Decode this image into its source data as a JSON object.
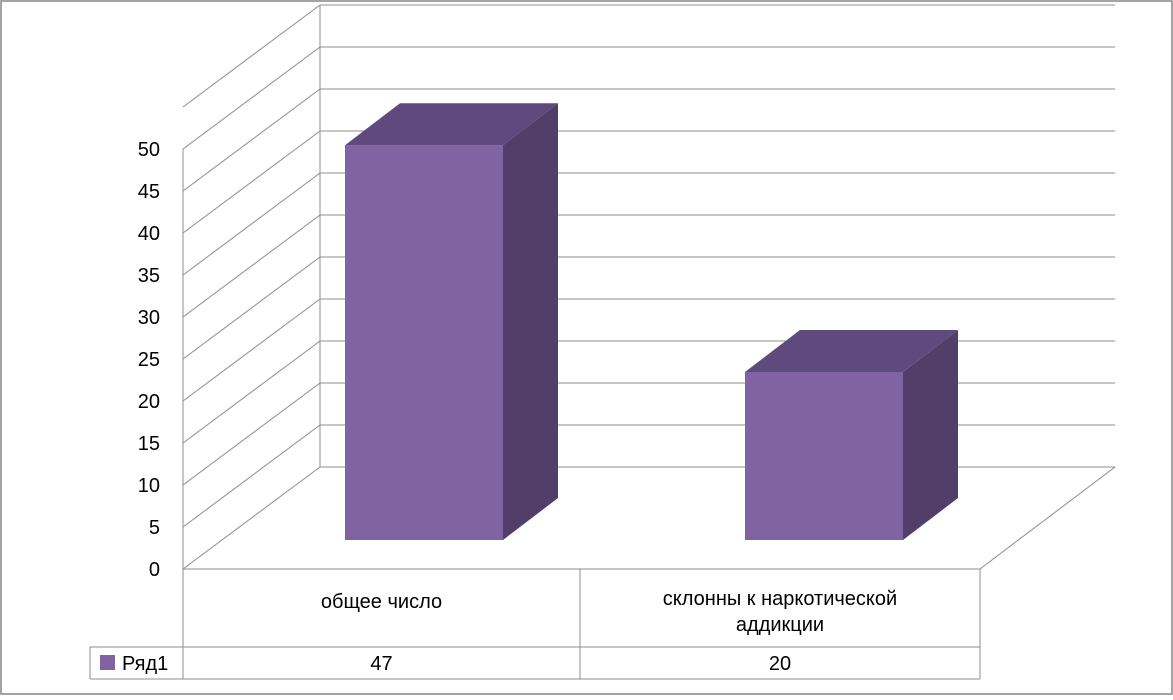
{
  "chart_data": {
    "type": "bar",
    "subtype": "3d-column",
    "categories": [
      "общее число",
      "склонны к наркотической аддикции"
    ],
    "category_lines": [
      [
        "общее число"
      ],
      [
        "склонны к наркотической",
        "аддикции"
      ]
    ],
    "series": [
      {
        "name": "Ряд1",
        "values": [
          47,
          20
        ]
      }
    ],
    "yticks": [
      "0",
      "5",
      "10",
      "15",
      "20",
      "25",
      "30",
      "35",
      "40",
      "45",
      "50"
    ],
    "ylim": [
      0,
      55
    ],
    "data_table": {
      "legend_label": "Ряд1",
      "values": [
        "47",
        "20"
      ]
    },
    "grid": true,
    "legend": "data-table"
  },
  "colors": {
    "bar_front": "#8064a2",
    "bar_top": "#5f4a7d",
    "bar_side": "#513f69",
    "grid": "#8c8c8c",
    "border": "#868686"
  }
}
